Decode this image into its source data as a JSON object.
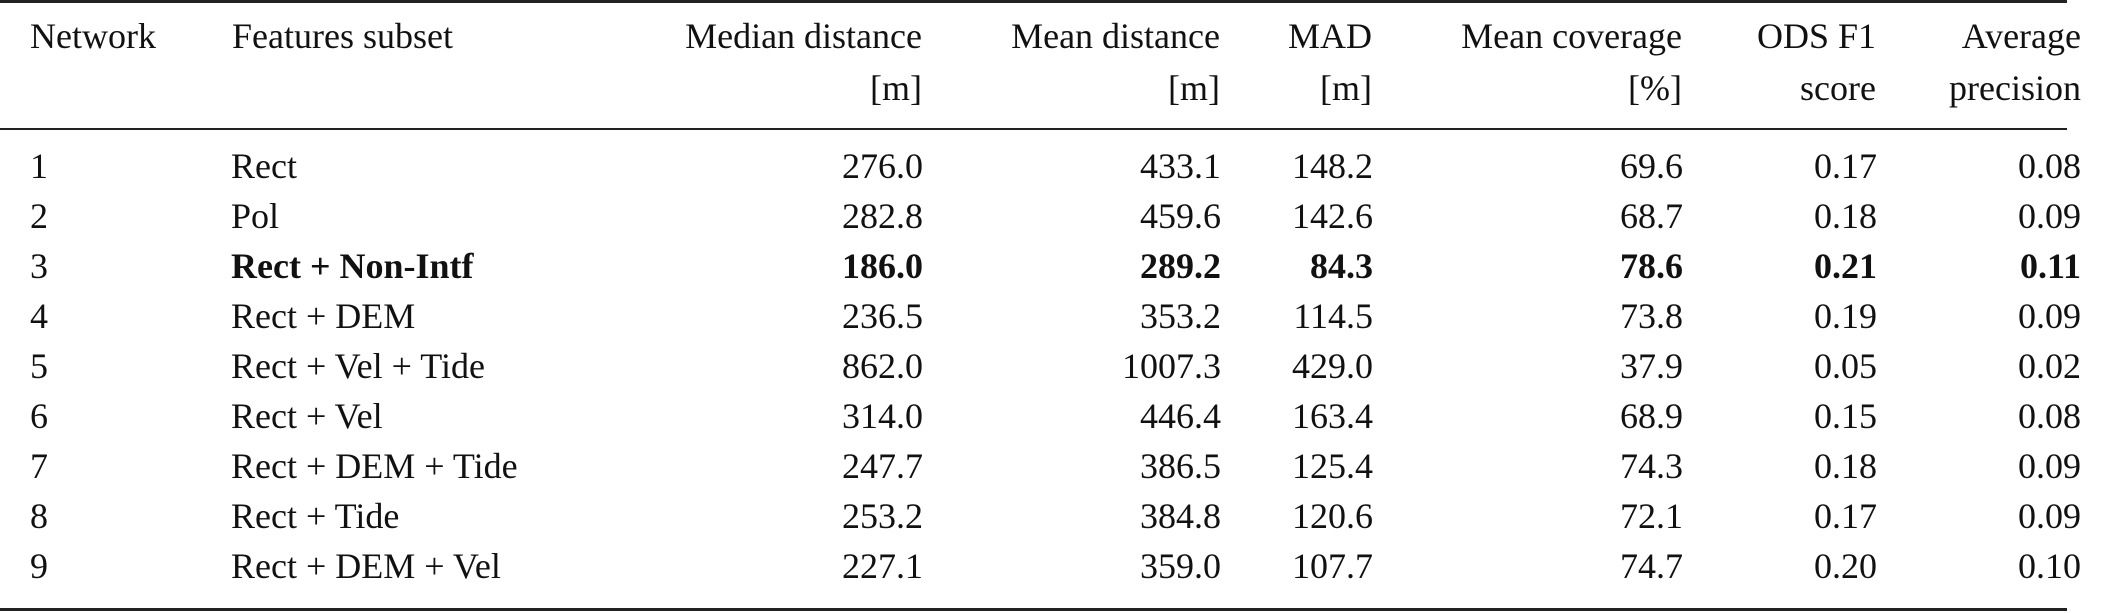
{
  "table": {
    "headers": [
      {
        "line1": "Network",
        "line2": ""
      },
      {
        "line1": "Features subset",
        "line2": ""
      },
      {
        "line1": "Median distance",
        "line2": "[m]"
      },
      {
        "line1": "Mean distance",
        "line2": "[m]"
      },
      {
        "line1": "MAD",
        "line2": "[m]"
      },
      {
        "line1": "Mean coverage",
        "line2": "[%]"
      },
      {
        "line1": "ODS F1",
        "line2": "score"
      },
      {
        "line1": "Average",
        "line2": "precision"
      }
    ],
    "rows": [
      {
        "network": "1",
        "features": "Rect",
        "median": "276.0",
        "mean": "433.1",
        "mad": "148.2",
        "coverage": "69.6",
        "ods": "0.17",
        "ap": "0.08"
      },
      {
        "network": "2",
        "features": "Pol",
        "median": "282.8",
        "mean": "459.6",
        "mad": "142.6",
        "coverage": "68.7",
        "ods": "0.18",
        "ap": "0.09"
      },
      {
        "network": "3",
        "features": "Rect + Non-Intf",
        "median": "186.0",
        "mean": "289.2",
        "mad": "84.3",
        "coverage": "78.6",
        "ods": "0.21",
        "ap": "0.11"
      },
      {
        "network": "4",
        "features": "Rect + DEM",
        "median": "236.5",
        "mean": "353.2",
        "mad": "114.5",
        "coverage": "73.8",
        "ods": "0.19",
        "ap": "0.09"
      },
      {
        "network": "5",
        "features": "Rect + Vel + Tide",
        "median": "862.0",
        "mean": "1007.3",
        "mad": "429.0",
        "coverage": "37.9",
        "ods": "0.05",
        "ap": "0.02"
      },
      {
        "network": "6",
        "features": "Rect + Vel",
        "median": "314.0",
        "mean": "446.4",
        "mad": "163.4",
        "coverage": "68.9",
        "ods": "0.15",
        "ap": "0.08"
      },
      {
        "network": "7",
        "features": "Rect + DEM + Tide",
        "median": "247.7",
        "mean": "386.5",
        "mad": "125.4",
        "coverage": "74.3",
        "ods": "0.18",
        "ap": "0.09"
      },
      {
        "network": "8",
        "features": "Rect + Tide",
        "median": "253.2",
        "mean": "384.8",
        "mad": "120.6",
        "coverage": "72.1",
        "ods": "0.17",
        "ap": "0.09"
      },
      {
        "network": "9",
        "features": "Rect + DEM + Vel",
        "median": "227.1",
        "mean": "359.0",
        "mad": "107.7",
        "coverage": "74.7",
        "ods": "0.20",
        "ap": "0.10"
      }
    ]
  }
}
